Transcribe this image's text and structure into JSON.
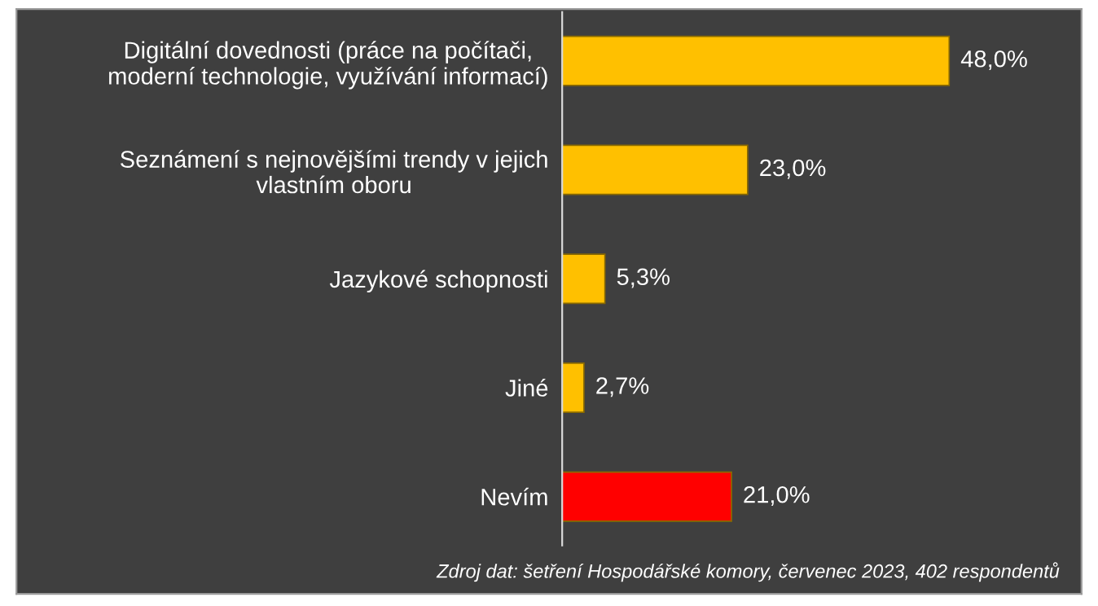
{
  "chart_data": {
    "type": "bar",
    "orientation": "horizontal",
    "categories": [
      "Digitální dovednosti (práce na počítači,\nmoderní technologie, využívání informací)",
      "Seznámení s nejnovějšími trendy v jejich\nvlastním oboru",
      "Jazykové schopnosti",
      "Jiné",
      "Nevím"
    ],
    "values": [
      48.0,
      23.0,
      5.3,
      2.7,
      21.0
    ],
    "colors": [
      "#ffc000",
      "#ffc000",
      "#ffc000",
      "#ffc000",
      "#ff0000"
    ],
    "value_labels": [
      "48,0%",
      "23,0%",
      "5,3%",
      "2,7%",
      "21,0%"
    ],
    "annotations": [
      "Zdroj dat: šetření Hospodářské komory, červenec 2023, 402 respondentů"
    ],
    "grid": false,
    "legend": false
  }
}
